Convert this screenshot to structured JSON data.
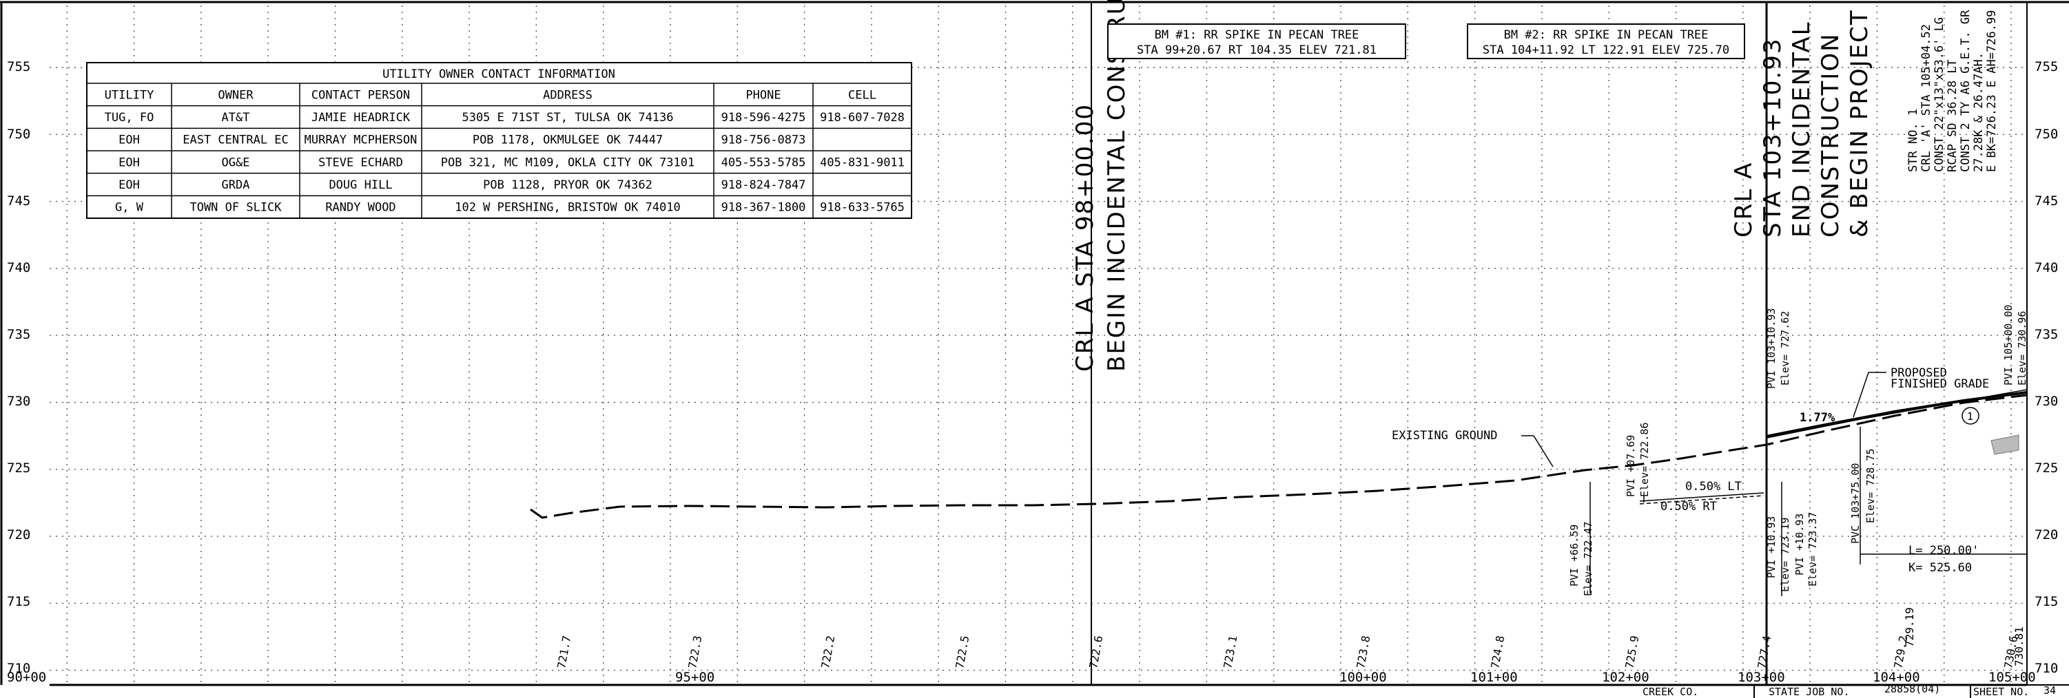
{
  "utility_table": {
    "title": "UTILITY OWNER CONTACT INFORMATION",
    "headers": [
      "UTILITY",
      "OWNER",
      "CONTACT PERSON",
      "ADDRESS",
      "PHONE",
      "CELL"
    ],
    "rows": [
      [
        "TUG, FO",
        "AT&T",
        "JAMIE HEADRICK",
        "5305 E 71ST ST, TULSA OK 74136",
        "918-596-4275",
        "918-607-7028"
      ],
      [
        "EOH",
        "EAST CENTRAL EC",
        "MURRAY MCPHERSON",
        "POB 1178, OKMULGEE OK 74447",
        "918-756-0873",
        ""
      ],
      [
        "EOH",
        "OG&E",
        "STEVE ECHARD",
        "POB 321, MC M109, OKLA CITY OK 73101",
        "405-553-5785",
        "405-831-9011"
      ],
      [
        "EOH",
        "GRDA",
        "DOUG HILL",
        "POB 1128, PRYOR OK 74362",
        "918-824-7847",
        ""
      ],
      [
        "G, W",
        "TOWN OF SLICK",
        "RANDY WOOD",
        "102 W PERSHING, BRISTOW OK 74010",
        "918-367-1800",
        "918-633-5765"
      ]
    ]
  },
  "elevation_axis": [
    "755",
    "750",
    "745",
    "740",
    "735",
    "730",
    "725",
    "720",
    "715",
    "710"
  ],
  "station_axis": [
    "90+00",
    "95+00",
    "100+00",
    "101+00",
    "102+00",
    "103+00",
    "104+00",
    "105+00"
  ],
  "ground_elevations": [
    "721.7",
    "722.3",
    "722.2",
    "722.5",
    "722.6",
    "723.1",
    "723.8",
    "724.8",
    "725.9",
    "727.4",
    "729.2",
    "729.19",
    "730.6",
    "730.81"
  ],
  "benchmarks": {
    "bm1": [
      "BM #1: RR SPIKE IN PECAN TREE",
      "STA 99+20.67 RT 104.35 ELEV 721.81"
    ],
    "bm2": [
      "BM #2: RR SPIKE IN PECAN TREE",
      "STA 104+11.92 LT 122.91 ELEV 725.70"
    ]
  },
  "begin_construction": [
    "CRL A STA 98+00.00",
    "BEGIN INCIDENTAL CONSTRUCTION"
  ],
  "end_construction": [
    "CRL A",
    "STA 103+10.93",
    "END INCIDENTAL",
    "CONSTRUCTION",
    "& BEGIN PROJECT"
  ],
  "structure_note": [
    "STR NO. 1",
    "CRL 'A' STA 105+04.52",
    "CONST 22\"x13\"x53.6' LG",
    "RCAP SD 36.28 LT",
    "CONST 2 TY A6 G.E.T. GR",
    "27.28K & 26.47AH.",
    "E BK=726.23 E AH=726.99"
  ],
  "labels": {
    "existing_ground": "EXISTING GROUND",
    "proposed_grade": [
      "PROPOSED",
      "FINISHED GRADE"
    ],
    "grade_177": "1.77%",
    "grade_lt": "0.50% LT",
    "grade_rt": "0.50% RT",
    "circle_num": "1"
  },
  "pvis": {
    "pvi1": [
      "PVI +66.59",
      "Elev= 722.47"
    ],
    "pvi2": [
      "PVI +07.69",
      "Elev= 722.86"
    ],
    "pvi3": [
      "PVI +10.93",
      "Elev= 723.19"
    ],
    "pvi4": [
      "PVI +10.93",
      "Elev= 723.37"
    ],
    "pvi_top": [
      "PVI 103+10.93",
      "Elev= 727.62"
    ],
    "pvc": [
      "PVC 103+75.00",
      "Elev= 728.75"
    ],
    "pvi_right": [
      "PVI 105+00.00",
      "Elev= 730.96"
    ]
  },
  "curve": {
    "length": "L= 250.00'",
    "k": "K= 525.60"
  },
  "title_block": {
    "county": "CREEK CO.",
    "job_label": "STATE JOB NO.",
    "job_no": "28858(04)",
    "sheet_label": "SHEET NO.",
    "sheet_no": "34"
  }
}
